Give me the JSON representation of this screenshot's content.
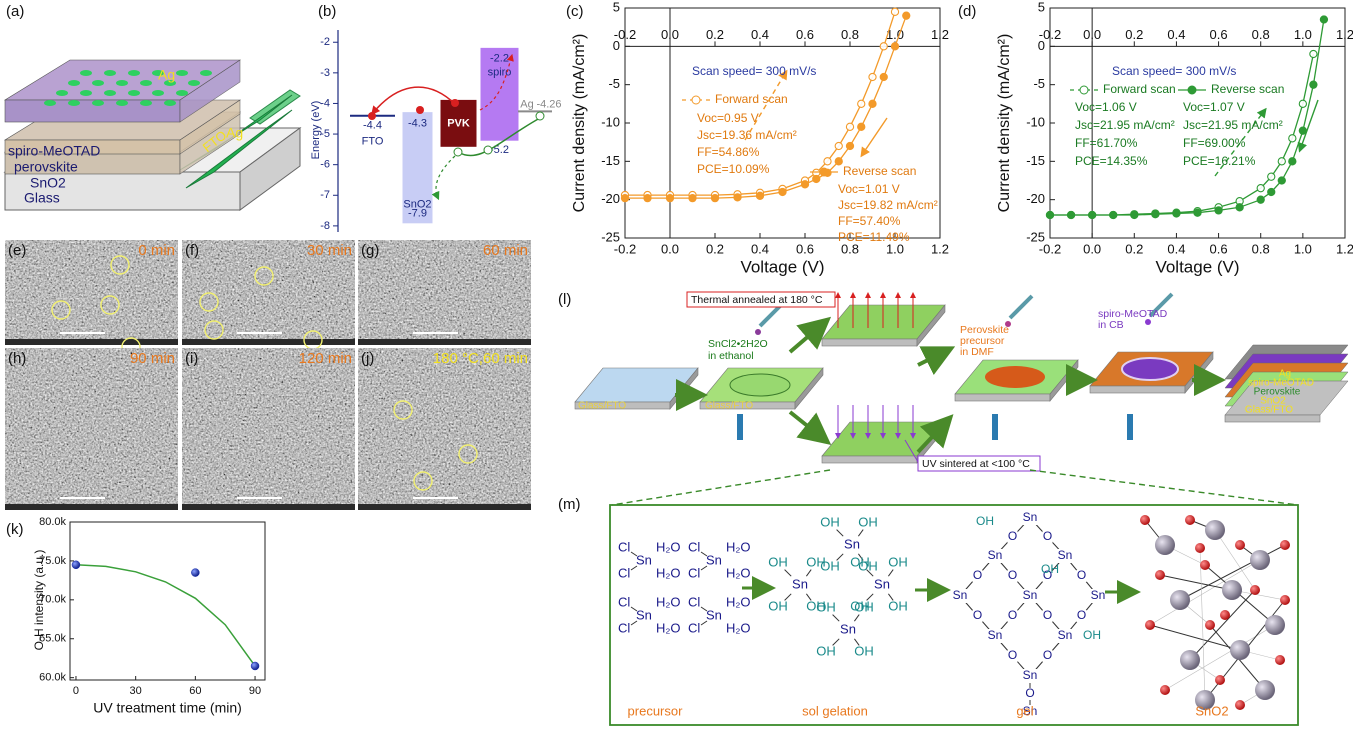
{
  "panel_a": {
    "label": "(a)",
    "layers": [
      "spiro-MeOTAD",
      "perovskite",
      "SnO2",
      "Glass"
    ],
    "top_contact": "Ag",
    "fto": "FTO",
    "side_contact": "Ag"
  },
  "chart_data": [
    {
      "type": "energy",
      "panel_label": "(b)",
      "ylabel": "Energy (eV)",
      "ylim": [
        -8.2,
        -1.6
      ],
      "yticks": [
        -2,
        -3,
        -4,
        -5,
        -6,
        -7,
        -8
      ],
      "levels": [
        {
          "name": "FTO",
          "top": -4.4,
          "color": "#1c2a80"
        },
        {
          "name": "SnO2",
          "top": -4.3,
          "bottom": -7.9,
          "color": "#c8cdf5"
        },
        {
          "name": "PVK",
          "top": -3.9,
          "bottom": -5.4,
          "color": "#7a0d10",
          "show_values": false
        },
        {
          "name": "spiro",
          "top": -2.2,
          "bottom": -5.2,
          "color": "#b57af2"
        },
        {
          "name": "Ag",
          "top": -4.26,
          "color": "#8a8a8a"
        }
      ]
    },
    {
      "type": "jv",
      "panel_label": "(c)",
      "xlabel": "Voltage (V)",
      "ylabel": "Current density (mA/cm²)",
      "xlim": [
        -0.2,
        1.2
      ],
      "ylim": [
        -25,
        5
      ],
      "xticks": [
        -0.2,
        {
          "value": 0,
          "label": "0.0"
        },
        0.2,
        0.4,
        0.6,
        0.8,
        {
          "value": 1,
          "label": "1.0"
        },
        1.2
      ],
      "yticks": [
        -25,
        -20,
        -15,
        -10,
        -5,
        0,
        5
      ],
      "scan_speed": "Scan speed= 300 mV/s",
      "x": [
        -0.2,
        -0.1,
        0,
        0.1,
        0.2,
        0.3,
        0.4,
        0.5,
        0.6,
        0.65,
        0.7,
        0.75,
        0.8,
        0.85,
        0.9,
        0.95,
        1.0,
        1.05
      ],
      "series": [
        {
          "name": "Forward scan",
          "color": "#f39a2a",
          "marker": "open",
          "values": [
            -19.4,
            -19.4,
            -19.4,
            -19.4,
            -19.4,
            -19.3,
            -19.1,
            -18.6,
            -17.5,
            -16.5,
            -15,
            -13,
            -10.5,
            -7.5,
            -4,
            0,
            4.5,
            null
          ],
          "stats": [
            "Voc=0.95 V",
            "Jsc=19.36 mA/cm²",
            "FF=54.86%",
            "PCE=10.09%"
          ]
        },
        {
          "name": "Reverse scan",
          "color": "#f39a2a",
          "marker": "filled",
          "values": [
            -19.8,
            -19.8,
            -19.8,
            -19.8,
            -19.8,
            -19.7,
            -19.5,
            -19,
            -18,
            -17.3,
            -16.5,
            -15,
            -13,
            -10.5,
            -7.5,
            -4,
            0,
            4
          ],
          "stats": [
            "Voc=1.01 V",
            "Jsc=19.82 mA/cm²",
            "FF=57.40%",
            "PCE=11.49%"
          ]
        }
      ]
    },
    {
      "type": "jv",
      "panel_label": "(d)",
      "xlabel": "Voltage (V)",
      "ylabel": "Current density (mA/cm²)",
      "xlim": [
        -0.2,
        1.2
      ],
      "ylim": [
        -25,
        5
      ],
      "xticks": [
        -0.2,
        {
          "value": 0,
          "label": "0.0"
        },
        0.2,
        0.4,
        0.6,
        0.8,
        {
          "value": 1,
          "label": "1.0"
        },
        1.2
      ],
      "yticks": [
        -25,
        -20,
        -15,
        -10,
        -5,
        0,
        5
      ],
      "scan_speed": "Scan speed= 300 mV/s",
      "x": [
        -0.2,
        -0.1,
        0,
        0.1,
        0.2,
        0.3,
        0.4,
        0.5,
        0.6,
        0.7,
        0.8,
        0.85,
        0.9,
        0.95,
        1.0,
        1.05,
        1.1
      ],
      "series": [
        {
          "name": "Forward scan",
          "color": "#2e9a35",
          "marker": "open",
          "values": [
            -22,
            -22,
            -22,
            -22,
            -21.9,
            -21.8,
            -21.7,
            -21.5,
            -21,
            -20.2,
            -18.5,
            -17,
            -15,
            -12,
            -7.5,
            -1,
            null
          ],
          "stats": [
            "Voc=1.06 V",
            "Jsc=21.95 mA/cm²",
            "FF=61.70%",
            "PCE=14.35%"
          ]
        },
        {
          "name": "Reverse scan",
          "color": "#2e9a35",
          "marker": "filled",
          "values": [
            -22,
            -22,
            -22,
            -22,
            -22,
            -21.9,
            -21.8,
            -21.7,
            -21.4,
            -21,
            -20,
            -19,
            -17.5,
            -15,
            -11,
            -5,
            3.5
          ],
          "stats": [
            "Voc=1.07 V",
            "Jsc=21.95 mA/cm²",
            "FF=69.00%",
            "PCE=16.21%"
          ]
        }
      ]
    },
    {
      "type": "scatter",
      "panel_label": "(k)",
      "xlabel": "UV treatment time (min)",
      "ylabel": "O-H intensity (a.u.)",
      "xlim": [
        -3,
        95
      ],
      "ylim": [
        59700,
        80000
      ],
      "xticks": [
        0,
        30,
        60,
        90
      ],
      "yticks": [
        {
          "value": 60000,
          "label": "60.0k"
        },
        {
          "value": 65000,
          "label": "65.0k"
        },
        {
          "value": 70000,
          "label": "70.0k"
        },
        {
          "value": 75000,
          "label": "75.0k"
        },
        {
          "value": 80000,
          "label": "80.0k"
        }
      ],
      "x": [
        0,
        60,
        90
      ],
      "values": [
        74500,
        73500,
        61500
      ],
      "color": "#1a30b0",
      "fit": {
        "x": [
          0,
          15,
          30,
          45,
          60,
          75,
          90
        ],
        "values": [
          74500,
          74300,
          73600,
          72300,
          70200,
          66800,
          61500
        ],
        "color": "#3aa03a"
      }
    }
  ],
  "sem": {
    "panels": [
      {
        "label": "(e)",
        "time": "0 min"
      },
      {
        "label": "(f)",
        "time": "30 min"
      },
      {
        "label": "(g)",
        "time": "60 min"
      },
      {
        "label": "(h)",
        "time": "90 min"
      },
      {
        "label": "(i)",
        "time": "120 min"
      },
      {
        "label": "(j)",
        "time": "180 °C,60 min"
      }
    ]
  },
  "panel_l": {
    "label": "(l)",
    "thermal": "Thermal annealed at 180 °C",
    "uv": "UV sintered at <100 °C",
    "sncl": [
      "SnCl2•2H2O",
      "in ethanol"
    ],
    "substrate": "Glass/FTO",
    "perovskite": [
      "Perovskite",
      "precursor",
      "in DMF"
    ],
    "spiro": [
      "spiro-MeOTAD",
      "in CB"
    ],
    "stack": [
      "Ag",
      "spiro-MeOTAD",
      "Perovskite",
      "SnO2",
      "Glass/FTO"
    ]
  },
  "panel_m": {
    "label": "(m)",
    "stages": [
      "precursor",
      "sol gelation",
      "gel",
      "SnO2"
    ],
    "atoms": {
      "cl": "Cl",
      "sn": "Sn",
      "water": "H₂O",
      "oh": "OH",
      "o": "O"
    }
  }
}
